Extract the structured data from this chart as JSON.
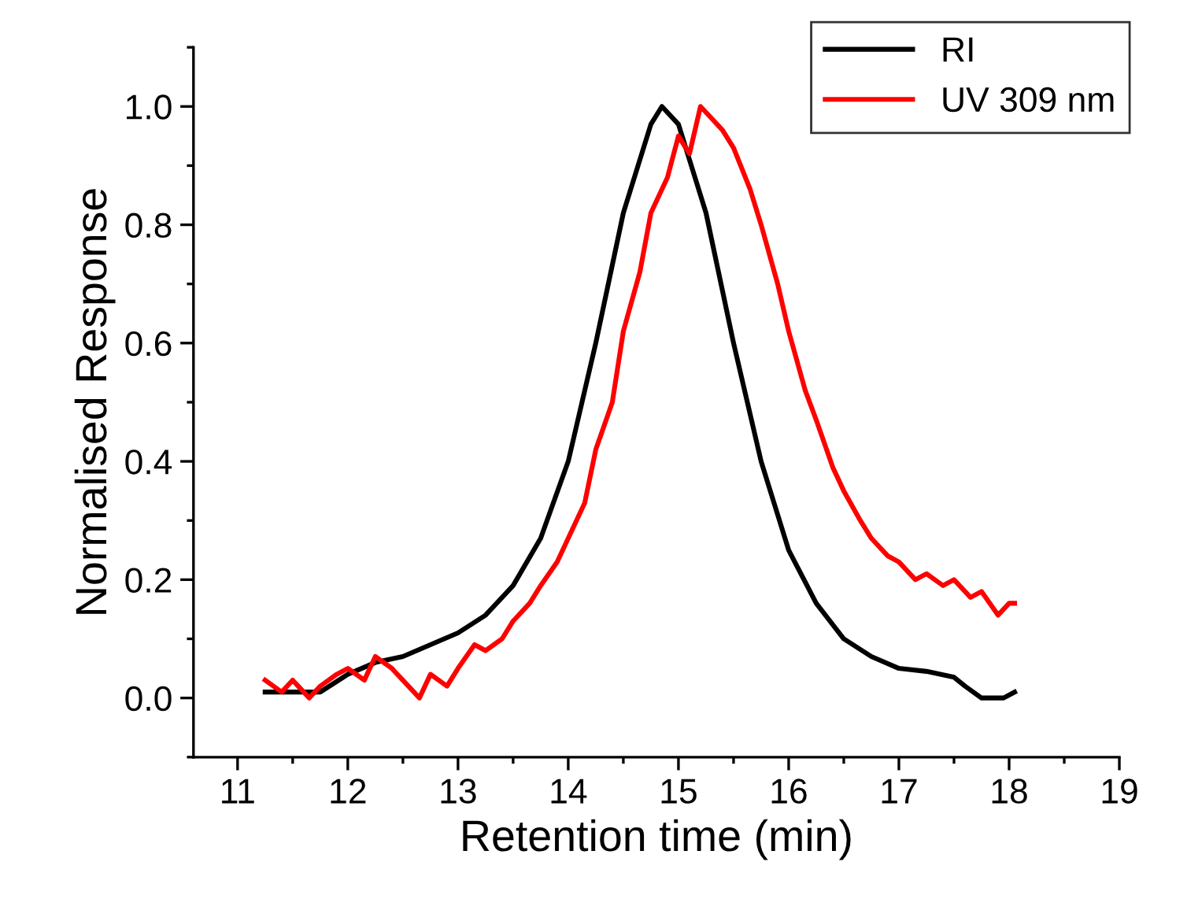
{
  "chart_data": {
    "type": "line",
    "xlabel": "Retention time (min)",
    "ylabel": "Normalised Response",
    "xlim": [
      10.6,
      19
    ],
    "xticks": [
      11,
      12,
      13,
      14,
      15,
      16,
      17,
      18,
      19
    ],
    "ylim": [
      -0.1,
      1.1
    ],
    "yticks": [
      {
        "value": 0,
        "label": "0.0"
      },
      0.2,
      0.4,
      0.6,
      0.8,
      {
        "value": 1,
        "label": "1.0"
      }
    ],
    "grid": false,
    "legend": "top right",
    "marker": "none",
    "line_style": "solid",
    "series": [
      {
        "name": "RI",
        "color": "#000000",
        "x": [
          11.25,
          11.5,
          11.75,
          12.0,
          12.25,
          12.5,
          12.75,
          13.0,
          13.25,
          13.5,
          13.75,
          14.0,
          14.25,
          14.5,
          14.75,
          14.85,
          15.0,
          15.25,
          15.5,
          15.75,
          16.0,
          16.25,
          16.5,
          16.75,
          17.0,
          17.25,
          17.5,
          17.6,
          17.75,
          17.95,
          18.05
        ],
        "values": [
          0.01,
          0.01,
          0.01,
          0.04,
          0.06,
          0.07,
          0.09,
          0.11,
          0.14,
          0.19,
          0.27,
          0.4,
          0.6,
          0.82,
          0.97,
          1.0,
          0.97,
          0.82,
          0.6,
          0.4,
          0.25,
          0.16,
          0.1,
          0.07,
          0.05,
          0.045,
          0.035,
          0.02,
          0.0,
          0.0,
          0.01
        ]
      },
      {
        "name": "UV 309 nm",
        "color": "#ff0000",
        "x": [
          11.25,
          11.4,
          11.5,
          11.65,
          11.75,
          11.9,
          12.0,
          12.15,
          12.25,
          12.4,
          12.5,
          12.65,
          12.75,
          12.9,
          13.0,
          13.15,
          13.25,
          13.4,
          13.5,
          13.65,
          13.75,
          13.9,
          14.0,
          14.15,
          14.25,
          14.4,
          14.5,
          14.65,
          14.75,
          14.9,
          15.0,
          15.1,
          15.2,
          15.3,
          15.4,
          15.5,
          15.65,
          15.75,
          15.9,
          16.0,
          16.15,
          16.25,
          16.4,
          16.5,
          16.65,
          16.75,
          16.9,
          17.0,
          17.15,
          17.25,
          17.4,
          17.5,
          17.65,
          17.75,
          17.9,
          18.0,
          18.05
        ],
        "values": [
          0.03,
          0.01,
          0.03,
          0.0,
          0.02,
          0.04,
          0.05,
          0.03,
          0.07,
          0.05,
          0.03,
          0.0,
          0.04,
          0.02,
          0.05,
          0.09,
          0.08,
          0.1,
          0.13,
          0.16,
          0.19,
          0.23,
          0.27,
          0.33,
          0.42,
          0.5,
          0.62,
          0.72,
          0.82,
          0.88,
          0.95,
          0.92,
          1.0,
          0.98,
          0.96,
          0.93,
          0.86,
          0.8,
          0.7,
          0.62,
          0.52,
          0.47,
          0.39,
          0.35,
          0.3,
          0.27,
          0.24,
          0.23,
          0.2,
          0.21,
          0.19,
          0.2,
          0.17,
          0.18,
          0.14,
          0.16,
          0.16
        ]
      }
    ]
  }
}
